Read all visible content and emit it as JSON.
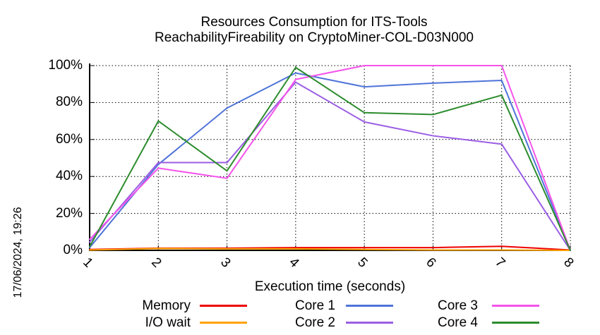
{
  "timestamp": "17/06/2024, 19:26",
  "chart_data": {
    "type": "line",
    "title": "Resources Consumption for ITS-Tools",
    "subtitle": "ReachabilityFireability on CryptoMiner-COL-D03N000",
    "xlabel": "Execution time (seconds)",
    "ylabel": "",
    "xlim": [
      1,
      8
    ],
    "ylim": [
      0,
      100
    ],
    "grid": true,
    "legend_position": "bottom",
    "x": [
      1,
      2,
      3,
      4,
      5,
      6,
      7,
      8
    ],
    "x_tick_labels": [
      "1",
      "2",
      "3",
      "4",
      "5",
      "6",
      "7",
      "8"
    ],
    "y_tick_values": [
      0,
      20,
      40,
      60,
      80,
      100
    ],
    "y_tick_labels": [
      "0%",
      "20%",
      "40%",
      "60%",
      "80%",
      "100%"
    ],
    "series": [
      {
        "name": "Memory",
        "color": "#ee0000",
        "values": [
          0.5,
          1.2,
          1.2,
          1.5,
          1.5,
          1.5,
          2.2,
          0.2
        ]
      },
      {
        "name": "I/O wait",
        "color": "#ffa300",
        "values": [
          0.2,
          1.0,
          0.8,
          0.8,
          0.5,
          0.2,
          0.2,
          0
        ]
      },
      {
        "name": "Core 1",
        "color": "#4f74d9",
        "values": [
          1.5,
          46.5,
          77,
          96,
          88.5,
          90.5,
          92,
          0
        ]
      },
      {
        "name": "Core 2",
        "color": "#9b5ee5",
        "values": [
          4.5,
          47.5,
          47.5,
          91,
          69.5,
          62,
          57.5,
          0
        ]
      },
      {
        "name": "Core 3",
        "color": "#f553ea",
        "values": [
          6,
          44.5,
          39,
          92.5,
          100,
          100,
          100,
          0
        ]
      },
      {
        "name": "Core 4",
        "color": "#2d8c2d",
        "values": [
          2,
          70,
          43,
          99,
          74.5,
          73.5,
          84,
          0
        ]
      }
    ]
  }
}
